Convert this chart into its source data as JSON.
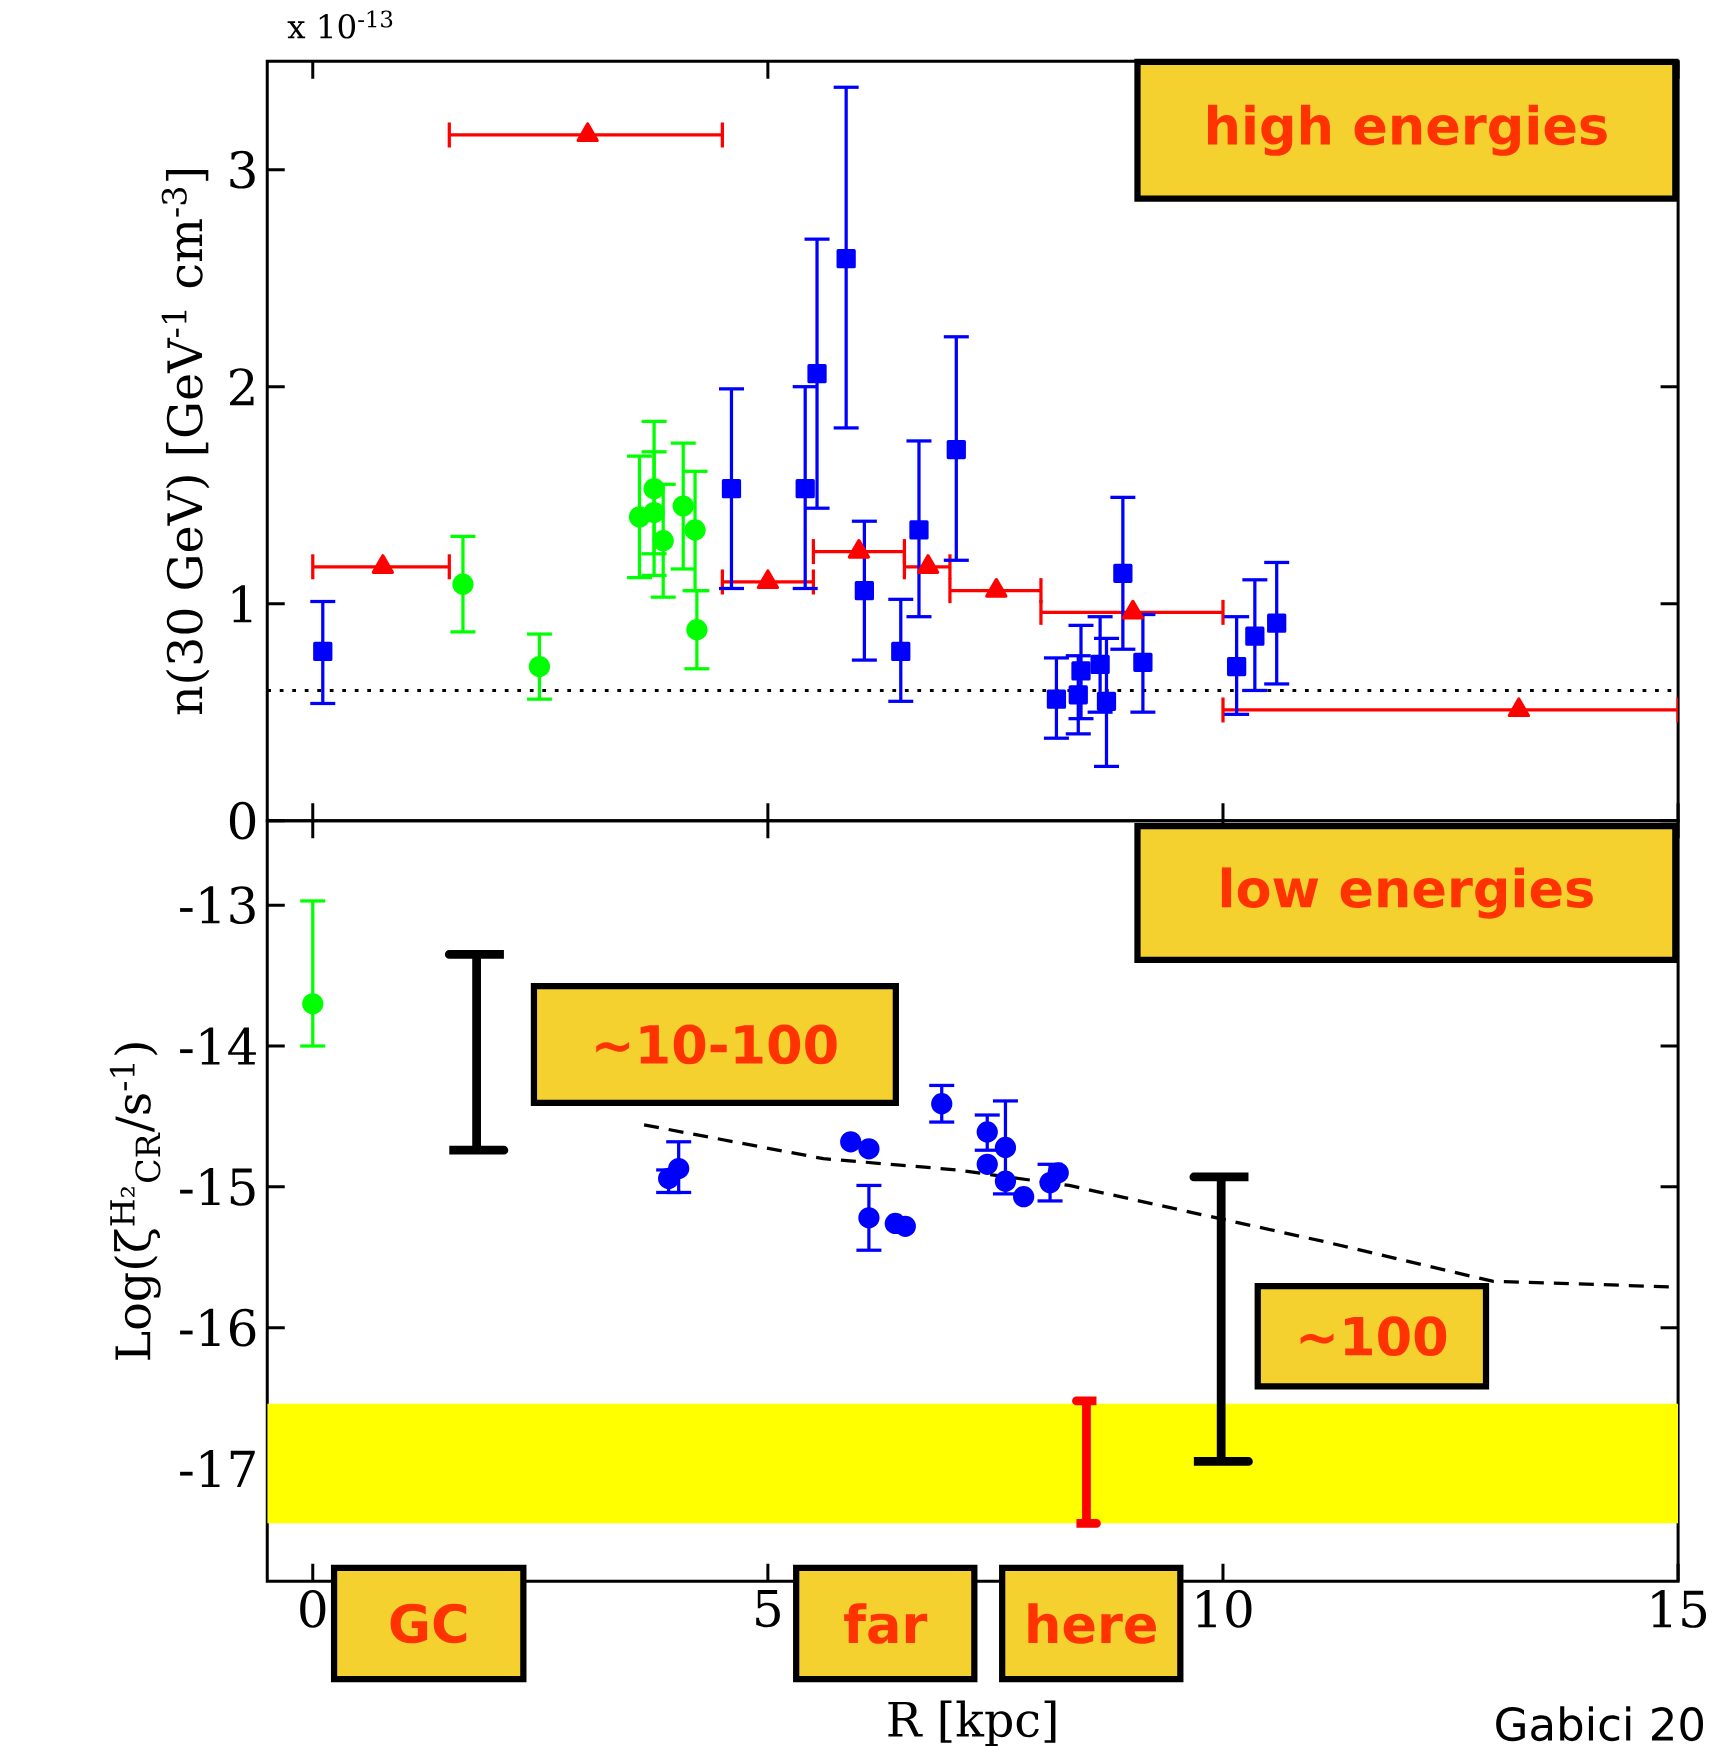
{
  "chart_data": [
    {
      "type": "scatter",
      "ylabel": "n(30 GeV) [GeV$^{-1}$ cm$^{-3}$]",
      "xlim": [
        -0.5,
        15
      ],
      "xticks": [
        0,
        5,
        10,
        15
      ],
      "ylim": [
        0,
        3.5
      ],
      "yticks": [
        0,
        1,
        2,
        3
      ],
      "tick_labels": "y",
      "ref_lines": [
        {
          "axis": "y",
          "value": 0.6,
          "color": "#000000",
          "line_style": "dotted"
        }
      ],
      "annotations": [
        "x 10$^{-13}$",
        "high energies"
      ],
      "series": [
        {
          "color": "#ff0000",
          "marker": "triangle",
          "x": [
            0.77,
            3.02,
            5.0,
            6.0,
            6.76,
            7.51,
            9.01,
            13.25
          ],
          "values": [
            1.17,
            3.16,
            1.1,
            1.24,
            1.17,
            1.06,
            0.96,
            0.51
          ],
          "xerrors": [
            [
              0,
              1.5
            ],
            [
              1.5,
              4.5
            ],
            [
              4.5,
              5.5
            ],
            [
              5.5,
              6.5
            ],
            [
              6.5,
              7.0
            ],
            [
              7.0,
              8.0
            ],
            [
              8.0,
              10.0
            ],
            [
              10.0,
              15.0
            ]
          ]
        },
        {
          "color": "#00ff00",
          "marker": "circle",
          "x": [
            1.65,
            2.49,
            3.59,
            3.75,
            3.75,
            3.85,
            4.07,
            4.2,
            4.22
          ],
          "values": [
            1.09,
            0.71,
            1.4,
            1.53,
            1.42,
            1.29,
            1.45,
            1.34,
            0.88
          ],
          "errors": [
            [
              0.87,
              1.31
            ],
            [
              0.56,
              0.86
            ],
            [
              1.12,
              1.68
            ],
            [
              1.23,
              1.84
            ],
            [
              1.13,
              1.7
            ],
            [
              1.03,
              1.55
            ],
            [
              1.16,
              1.74
            ],
            [
              1.06,
              1.61
            ],
            [
              0.7,
              1.06
            ]
          ]
        },
        {
          "color": "#0000ff",
          "marker": "square",
          "x": [
            0.11,
            4.6,
            5.41,
            5.54,
            5.86,
            6.06,
            6.46,
            6.66,
            7.07,
            8.17,
            8.41,
            8.44,
            8.65,
            8.72,
            8.9,
            9.12,
            10.15,
            10.35,
            10.59
          ],
          "values": [
            0.78,
            1.53,
            1.53,
            2.06,
            2.59,
            1.06,
            0.78,
            1.34,
            1.71,
            0.56,
            0.58,
            0.69,
            0.72,
            0.55,
            1.14,
            0.73,
            0.71,
            0.85,
            0.91
          ],
          "errors": [
            [
              0.54,
              1.01
            ],
            [
              1.07,
              1.99
            ],
            [
              1.07,
              2.0
            ],
            [
              1.44,
              2.68
            ],
            [
              1.81,
              3.38
            ],
            [
              0.74,
              1.38
            ],
            [
              0.55,
              1.02
            ],
            [
              0.94,
              1.75
            ],
            [
              1.2,
              2.23
            ],
            [
              0.38,
              0.75
            ],
            [
              0.4,
              0.76
            ],
            [
              0.47,
              0.9
            ],
            [
              0.5,
              0.94
            ],
            [
              0.25,
              0.84
            ],
            [
              0.79,
              1.49
            ],
            [
              0.5,
              0.95
            ],
            [
              0.49,
              0.94
            ],
            [
              0.6,
              1.11
            ],
            [
              0.63,
              1.19
            ]
          ]
        }
      ]
    },
    {
      "type": "scatter",
      "xlabel": "R [kpc]",
      "ylabel": "Log(ζ$^{H₂}$$_{CR}$/s$^{-1}$)",
      "xlim": [
        -0.5,
        15
      ],
      "xticks": [
        0,
        5,
        10,
        15
      ],
      "ylim": [
        -17.8,
        -12.4
      ],
      "yticks": [
        -17,
        -16,
        -15,
        -14,
        -13
      ],
      "bands": [
        {
          "axis": "y",
          "from": -17.39,
          "to": -16.54,
          "color": "#ffff00"
        }
      ],
      "annotations": [
        "low energies",
        "~10-100",
        "~100",
        "GC",
        "far",
        "here",
        "Gabici 20"
      ],
      "series": [
        {
          "color": "#00ff00",
          "marker": "circle",
          "x": [
            0
          ],
          "values": [
            -13.7
          ],
          "errors": [
            [
              -14.0,
              -12.97
            ]
          ]
        },
        {
          "color": "#0000ff",
          "marker": "circle",
          "x": [
            3.91,
            4.02,
            5.91,
            6.11,
            6.91,
            6.11,
            6.4,
            6.51,
            7.41,
            7.41,
            7.61,
            7.61,
            7.81,
            8.1,
            8.19
          ],
          "values": [
            -14.94,
            -14.87,
            -14.68,
            -14.73,
            -14.41,
            -15.22,
            -15.26,
            -15.28,
            -14.61,
            -14.84,
            -14.72,
            -14.96,
            -15.07,
            -14.97,
            -14.9
          ],
          "errors": [
            [
              -15.04,
              -14.88
            ],
            [
              -15.04,
              -14.68
            ],
            null,
            null,
            [
              -14.54,
              -14.28
            ],
            [
              -15.45,
              -14.99
            ],
            null,
            null,
            [
              -14.74,
              -14.49
            ],
            null,
            [
              -15.05,
              -14.39
            ],
            null,
            null,
            [
              -15.1,
              -14.84
            ],
            null
          ]
        },
        {
          "type": "line",
          "color": "#000000",
          "marker": "none",
          "line_style": "dashed",
          "x": [
            3.64,
            5.61,
            7.08,
            8.31,
            11.12,
            12.96,
            14.91
          ],
          "values": [
            -14.56,
            -14.8,
            -14.88,
            -14.99,
            -15.39,
            -15.67,
            -15.71
          ]
        },
        {
          "type": "line",
          "color": "#000000",
          "marker": "none",
          "line_style": "solid",
          "x": [
            1.5,
            2.1,
            1.8,
            1.8,
            1.5,
            2.1
          ],
          "values": [
            -14.74,
            -14.74,
            -14.74,
            -13.35,
            -13.35,
            -13.35
          ]
        },
        {
          "type": "line",
          "color": "#000000",
          "marker": "none",
          "line_style": "solid",
          "x": [
            9.68,
            10.28,
            9.98,
            9.98,
            9.68,
            10.28
          ],
          "values": [
            -16.95,
            -16.95,
            -16.95,
            -14.93,
            -14.93,
            -14.93
          ]
        },
        {
          "type": "line",
          "color": "#ff0000",
          "marker": "none",
          "line_style": "solid",
          "x": [
            8.39,
            8.61,
            8.5,
            8.5,
            8.39,
            8.61
          ],
          "values": [
            -17.39,
            -17.39,
            -17.39,
            -16.52,
            -16.52,
            -16.52
          ]
        }
      ]
    }
  ]
}
